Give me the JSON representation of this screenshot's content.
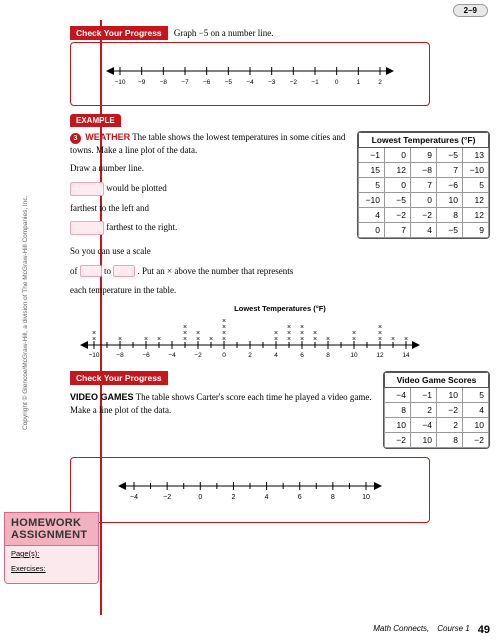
{
  "page_tab": "2–9",
  "cyp1": {
    "label": "Check Your Progress",
    "text": "Graph −5 on a number line."
  },
  "numberline1": {
    "min": -10,
    "max": 2,
    "ticks": [
      "−10",
      "−9",
      "−8",
      "−7",
      "−6",
      "−5",
      "−4",
      "−3",
      "−2",
      "−1",
      "0",
      "1",
      "2"
    ]
  },
  "example_badge": "EXAMPLE",
  "ex3": {
    "bullet": "3",
    "topic": "WEATHER",
    "intro": "The table shows the lowest temperatures in some cities and towns. Make a line plot of the data.",
    "step1": "Draw a number line.",
    "blank1_after": "would be plotted",
    "line_left": "farthest to the left and",
    "blank2_after": "farthest to the right.",
    "scale_a": "So you can use a scale",
    "scale_b": "of",
    "scale_c": "to",
    "scale_d": ". Put an × above the number that represents",
    "scale_e": "each temperature in the table."
  },
  "table1": {
    "title": "Lowest Temperatures (°F)",
    "rows": [
      [
        "−1",
        "0",
        "9",
        "−5",
        "13"
      ],
      [
        "15",
        "12",
        "−8",
        "7",
        "−10"
      ],
      [
        "5",
        "0",
        "7",
        "−6",
        "5"
      ],
      [
        "−10",
        "−5",
        "0",
        "10",
        "12"
      ],
      [
        "4",
        "−2",
        "−2",
        "8",
        "12"
      ],
      [
        "0",
        "7",
        "4",
        "−5",
        "9"
      ]
    ]
  },
  "lineplot": {
    "title": "Lowest Temperatures (°F)",
    "ticks": [
      "−10",
      "−8",
      "−6",
      "−4",
      "−2",
      "0",
      "2",
      "4",
      "6",
      "8",
      "10",
      "12",
      "14"
    ]
  },
  "cyp2": {
    "label": "Check Your Progress",
    "topic": "VIDEO GAMES",
    "text": "The table shows Carter's score each time he played a video game. Make a line plot of the data."
  },
  "table2": {
    "title": "Video Game Scores",
    "rows": [
      [
        "−4",
        "−1",
        "10",
        "5"
      ],
      [
        "8",
        "2",
        "−2",
        "4"
      ],
      [
        "10",
        "−4",
        "2",
        "10"
      ],
      [
        "−2",
        "10",
        "8",
        "−2"
      ]
    ]
  },
  "numberline3": {
    "ticks": [
      "−4",
      "−2",
      "0",
      "2",
      "4",
      "6",
      "8",
      "10"
    ]
  },
  "hw": {
    "title1": "HOMEWORK",
    "title2": "ASSIGNMENT",
    "pages": "Page(s):",
    "ex": "Exercises:"
  },
  "copyright": "Copyright © Glencoe/McGraw-Hill, a division of The McGraw-Hill Companies, Inc.",
  "footer": {
    "book": "Math Connects,",
    "course": "Course 1",
    "page": "49"
  }
}
